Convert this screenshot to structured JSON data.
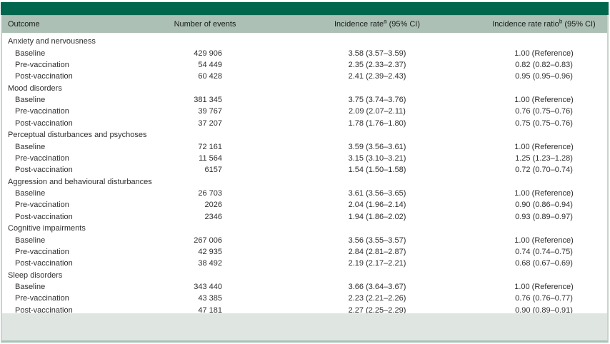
{
  "colors": {
    "accent_bar": "#00664e",
    "header_row_bg": "#acc0b5",
    "footer_strip_bg": "#dfe5e0",
    "frame_border": "#c3d6ca",
    "bottom_border": "#a6c3b4",
    "header_text": "#1b1b1b",
    "body_text": "#2e2e2e"
  },
  "table": {
    "headers": {
      "outcome": "Outcome",
      "events": "Number of events",
      "rate": {
        "label": "Incidence rate",
        "footnote": "a",
        "ci": " (95% CI)"
      },
      "ratio": {
        "label": "Incidence rate ratio",
        "footnote": "b",
        "ci": " (95% CI)"
      }
    },
    "groups": [
      {
        "label": "Anxiety and nervousness",
        "rows": [
          {
            "label": "Baseline",
            "events": "429 906",
            "rate": "3.58 (3.57–3.59)",
            "ratio": "1.00 (Reference)"
          },
          {
            "label": "Pre-vaccination",
            "events": "54 449",
            "rate": "2.35 (2.33–2.37)",
            "ratio": "0.82 (0.82–0.83)"
          },
          {
            "label": "Post-vaccination",
            "events": "60 428",
            "rate": "2.41 (2.39–2.43)",
            "ratio": "0.95 (0.95–0.96)"
          }
        ]
      },
      {
        "label": "Mood disorders",
        "rows": [
          {
            "label": "Baseline",
            "events": "381 345",
            "rate": "3.75 (3.74–3.76)",
            "ratio": "1.00 (Reference)"
          },
          {
            "label": "Pre-vaccination",
            "events": "39 767",
            "rate": "2.09 (2.07–2.11)",
            "ratio": "0.76 (0.75–0.76)"
          },
          {
            "label": "Post-vaccination",
            "events": "37 207",
            "rate": "1.78 (1.76–1.80)",
            "ratio": "0.75 (0.75–0.76)"
          }
        ]
      },
      {
        "label": "Perceptual disturbances and psychoses",
        "rows": [
          {
            "label": "Baseline",
            "events": "72 161",
            "rate": "3.59 (3.56–3.61)",
            "ratio": "1.00 (Reference)"
          },
          {
            "label": "Pre-vaccination",
            "events": "11 564",
            "rate": "3.15 (3.10–3.21)",
            "ratio": "1.25 (1.23–1.28)"
          },
          {
            "label": "Post-vaccination",
            "events": "6157",
            "rate": "1.54 (1.50–1.58)",
            "ratio": "0.72 (0.70–0.74)"
          }
        ]
      },
      {
        "label": "Aggression and behavioural disturbances",
        "rows": [
          {
            "label": "Baseline",
            "events": "26 703",
            "rate": "3.61 (3.56–3.65)",
            "ratio": "1.00 (Reference)"
          },
          {
            "label": "Pre-vaccination",
            "events": "2026",
            "rate": "2.04 (1.96–2.14)",
            "ratio": "0.90 (0.86–0.94)"
          },
          {
            "label": "Post-vaccination",
            "events": "2346",
            "rate": "1.94 (1.86–2.02)",
            "ratio": "0.93 (0.89–0.97)"
          }
        ]
      },
      {
        "label": "Cognitive impairments",
        "rows": [
          {
            "label": "Baseline",
            "events": "267 006",
            "rate": "3.56 (3.55–3.57)",
            "ratio": "1.00 (Reference)"
          },
          {
            "label": "Pre-vaccination",
            "events": "42 935",
            "rate": "2.84 (2.81–2.87)",
            "ratio": "0.74 (0.74–0.75)"
          },
          {
            "label": "Post-vaccination",
            "events": "38 492",
            "rate": "2.19 (2.17–2.21)",
            "ratio": "0.68 (0.67–0.69)"
          }
        ]
      },
      {
        "label": "Sleep disorders",
        "rows": [
          {
            "label": "Baseline",
            "events": "343 440",
            "rate": "3.66 (3.64–3.67)",
            "ratio": "1.00 (Reference)"
          },
          {
            "label": "Pre-vaccination",
            "events": "43 385",
            "rate": "2.23 (2.21–2.26)",
            "ratio": "0.76 (0.76–0.77)"
          },
          {
            "label": "Post-vaccination",
            "events": "47 181",
            "rate": "2.27 (2.25–2.29)",
            "ratio": "0.90 (0.89–0.91)"
          }
        ]
      }
    ]
  }
}
